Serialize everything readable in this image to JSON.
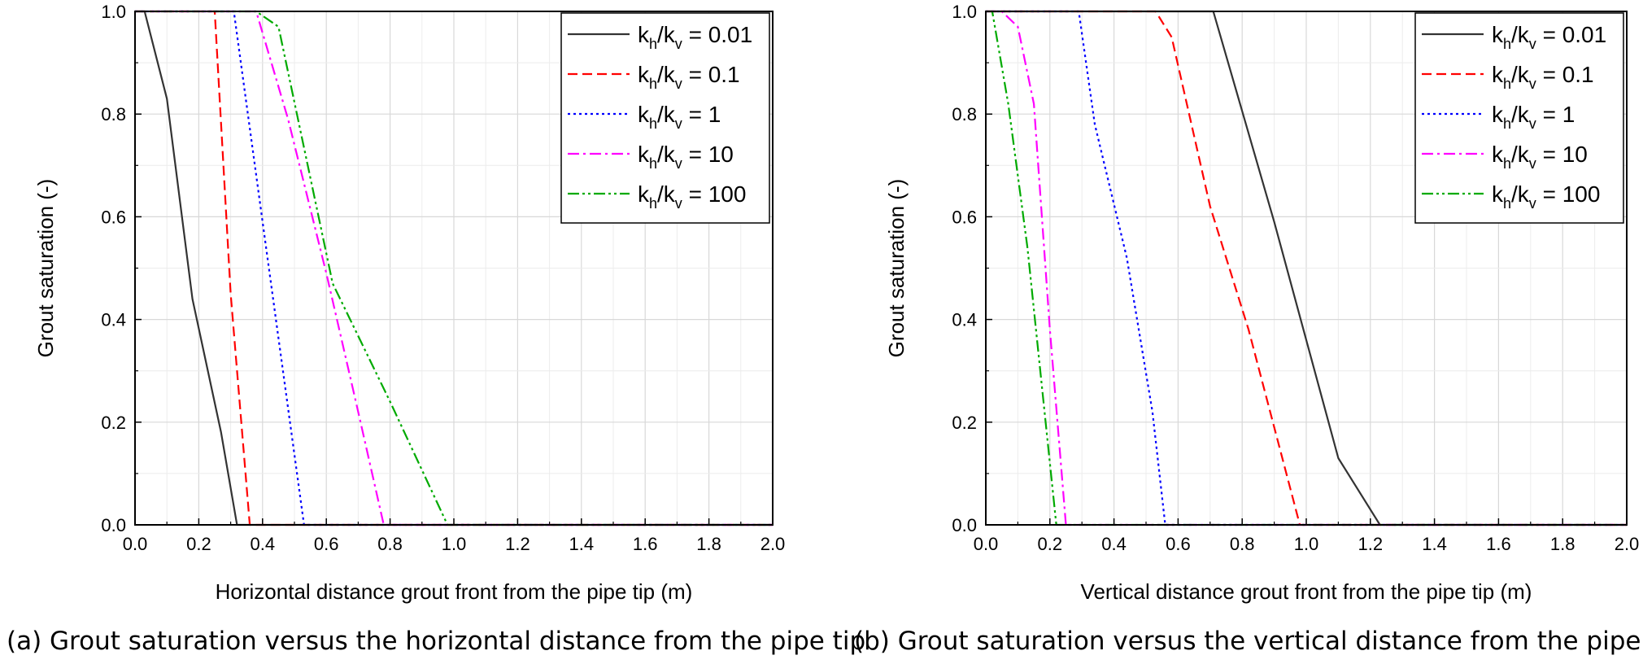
{
  "chart_data": [
    {
      "type": "line",
      "title": "",
      "xlabel": "Horizontal distance grout front from the pipe tip (m)",
      "ylabel": "Grout saturation (-)",
      "xlim": [
        0,
        2.0
      ],
      "ylim": [
        0,
        1.0
      ],
      "xticks": [
        "0.0",
        "0.2",
        "0.4",
        "0.6",
        "0.8",
        "1.0",
        "1.2",
        "1.4",
        "1.6",
        "1.8",
        "2.0"
      ],
      "yticks": [
        "0.0",
        "0.2",
        "0.4",
        "0.6",
        "0.8",
        "1.0"
      ],
      "grid": true,
      "legend_position": "top-right",
      "caption": "(a) Grout saturation versus the horizontal distance from the pipe tip",
      "series": [
        {
          "name": "kh/kv = 0.01",
          "label_parts": [
            "k",
            "h",
            "/k",
            "v",
            " = 0.01"
          ],
          "color": "#333333",
          "dash": "solid",
          "x": [
            0.0,
            0.03,
            0.1,
            0.18,
            0.27,
            0.32,
            2.0
          ],
          "y": [
            1.0,
            1.0,
            0.83,
            0.44,
            0.18,
            0.0,
            0.0
          ]
        },
        {
          "name": "kh/kv = 0.1",
          "label_parts": [
            "k",
            "h",
            "/k",
            "v",
            " = 0.1"
          ],
          "color": "#ff0000",
          "dash": "dashed",
          "x": [
            0.0,
            0.25,
            0.3,
            0.36,
            2.0
          ],
          "y": [
            1.0,
            1.0,
            0.45,
            0.0,
            0.0
          ]
        },
        {
          "name": "kh/kv = 1",
          "label_parts": [
            "k",
            "h",
            "/k",
            "v",
            " = 1"
          ],
          "color": "#0000ff",
          "dash": "dotted",
          "x": [
            0.0,
            0.31,
            0.42,
            0.53,
            2.0
          ],
          "y": [
            1.0,
            1.0,
            0.5,
            0.0,
            0.0
          ]
        },
        {
          "name": "kh/kv = 10",
          "label_parts": [
            "k",
            "h",
            "/k",
            "v",
            " = 10"
          ],
          "color": "#ff00ff",
          "dash": "dashdot",
          "x": [
            0.0,
            0.38,
            0.48,
            0.6,
            0.7,
            0.78,
            0.85,
            2.0
          ],
          "y": [
            1.0,
            1.0,
            0.79,
            0.49,
            0.22,
            0.0,
            0.0,
            0.0
          ]
        },
        {
          "name": "kh/kv = 100",
          "label_parts": [
            "k",
            "h",
            "/k",
            "v",
            " = 100"
          ],
          "color": "#00aa00",
          "dash": "dashdotdot",
          "x": [
            0.0,
            0.38,
            0.45,
            0.62,
            0.8,
            0.98,
            2.0
          ],
          "y": [
            1.0,
            1.0,
            0.97,
            0.47,
            0.24,
            0.0,
            0.0
          ]
        }
      ]
    },
    {
      "type": "line",
      "title": "",
      "xlabel": "Vertical distance grout front from the pipe tip (m)",
      "ylabel": "Grout saturation (-)",
      "xlim": [
        0,
        2.0
      ],
      "ylim": [
        0,
        1.0
      ],
      "xticks": [
        "0.0",
        "0.2",
        "0.4",
        "0.6",
        "0.8",
        "1.0",
        "1.2",
        "1.4",
        "1.6",
        "1.8",
        "2.0"
      ],
      "yticks": [
        "0.0",
        "0.2",
        "0.4",
        "0.6",
        "0.8",
        "1.0"
      ],
      "grid": true,
      "legend_position": "top-right",
      "caption": "(b) Grout saturation versus the vertical distance from the pipe tip",
      "series": [
        {
          "name": "kh/kv = 0.01",
          "label_parts": [
            "k",
            "h",
            "/k",
            "v",
            " = 0.01"
          ],
          "color": "#333333",
          "dash": "solid",
          "x": [
            0.0,
            0.71,
            0.9,
            1.1,
            1.23,
            2.0
          ],
          "y": [
            1.0,
            1.0,
            0.59,
            0.13,
            0.0,
            0.0
          ]
        },
        {
          "name": "kh/kv = 0.1",
          "label_parts": [
            "k",
            "h",
            "/k",
            "v",
            " = 0.1"
          ],
          "color": "#ff0000",
          "dash": "dashed",
          "x": [
            0.0,
            0.53,
            0.58,
            0.7,
            0.82,
            0.98,
            2.0
          ],
          "y": [
            1.0,
            1.0,
            0.95,
            0.62,
            0.38,
            0.0,
            0.0
          ]
        },
        {
          "name": "kh/kv = 1",
          "label_parts": [
            "k",
            "h",
            "/k",
            "v",
            " = 1"
          ],
          "color": "#0000ff",
          "dash": "dotted",
          "x": [
            0.0,
            0.29,
            0.34,
            0.44,
            0.52,
            0.56,
            2.0
          ],
          "y": [
            1.0,
            1.0,
            0.78,
            0.52,
            0.22,
            0.0,
            0.0
          ]
        },
        {
          "name": "kh/kv = 10",
          "label_parts": [
            "k",
            "h",
            "/k",
            "v",
            " = 10"
          ],
          "color": "#ff00ff",
          "dash": "dashdot",
          "x": [
            0.0,
            0.05,
            0.1,
            0.15,
            0.2,
            0.25,
            2.0
          ],
          "y": [
            1.0,
            1.0,
            0.97,
            0.82,
            0.38,
            0.0,
            0.0
          ]
        },
        {
          "name": "kh/kv = 100",
          "label_parts": [
            "k",
            "h",
            "/k",
            "v",
            " = 100"
          ],
          "color": "#00aa00",
          "dash": "dashdotdot",
          "x": [
            0.0,
            0.02,
            0.07,
            0.13,
            0.22,
            2.0
          ],
          "y": [
            1.0,
            1.0,
            0.82,
            0.54,
            0.0,
            0.0
          ]
        }
      ]
    }
  ]
}
